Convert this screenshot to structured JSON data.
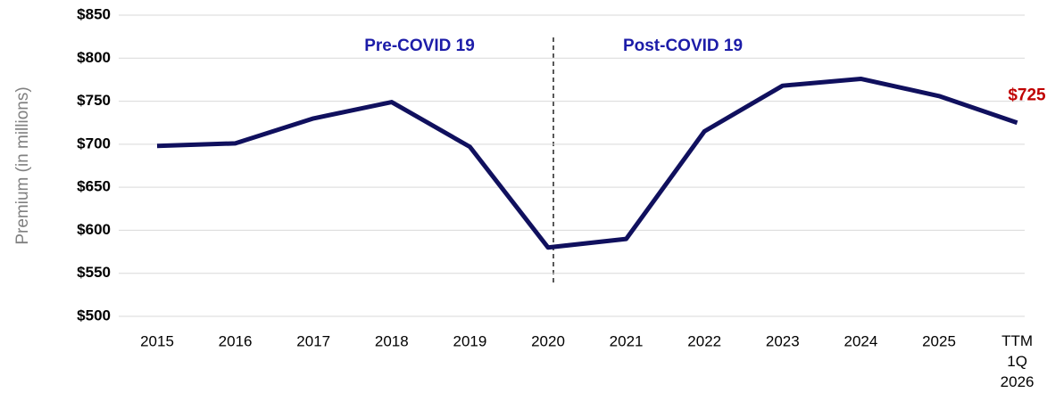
{
  "chart_data": {
    "type": "line",
    "y_label": "Premium (in millions)",
    "annotations": [
      "Pre-COVID 19",
      "Post-COVID 19"
    ],
    "categories": [
      "2015",
      "2016",
      "2017",
      "2018",
      "2019",
      "2020",
      "2021",
      "2022",
      "2023",
      "2024",
      "2025",
      "TTM 1Q 2026"
    ],
    "series": [
      {
        "name": "Premium",
        "color": "#10105e",
        "values": [
          698,
          701,
          730,
          749,
          697,
          580,
          590,
          715,
          768,
          776,
          756,
          725
        ],
        "value_labels": [
          null,
          null,
          null,
          null,
          null,
          null,
          null,
          null,
          null,
          null,
          null,
          "$725"
        ]
      }
    ],
    "value_label_color": "#c00000",
    "ylim": [
      500,
      850
    ],
    "yticks": [
      {
        "value": 500,
        "label": "$500"
      },
      {
        "value": 550,
        "label": "$550"
      },
      {
        "value": 600,
        "label": "$600"
      },
      {
        "value": 650,
        "label": "$650"
      },
      {
        "value": 700,
        "label": "$700"
      },
      {
        "value": 750,
        "label": "$750"
      },
      {
        "value": 800,
        "label": "$800"
      },
      {
        "value": 850,
        "label": "$850"
      }
    ],
    "grid": true
  }
}
